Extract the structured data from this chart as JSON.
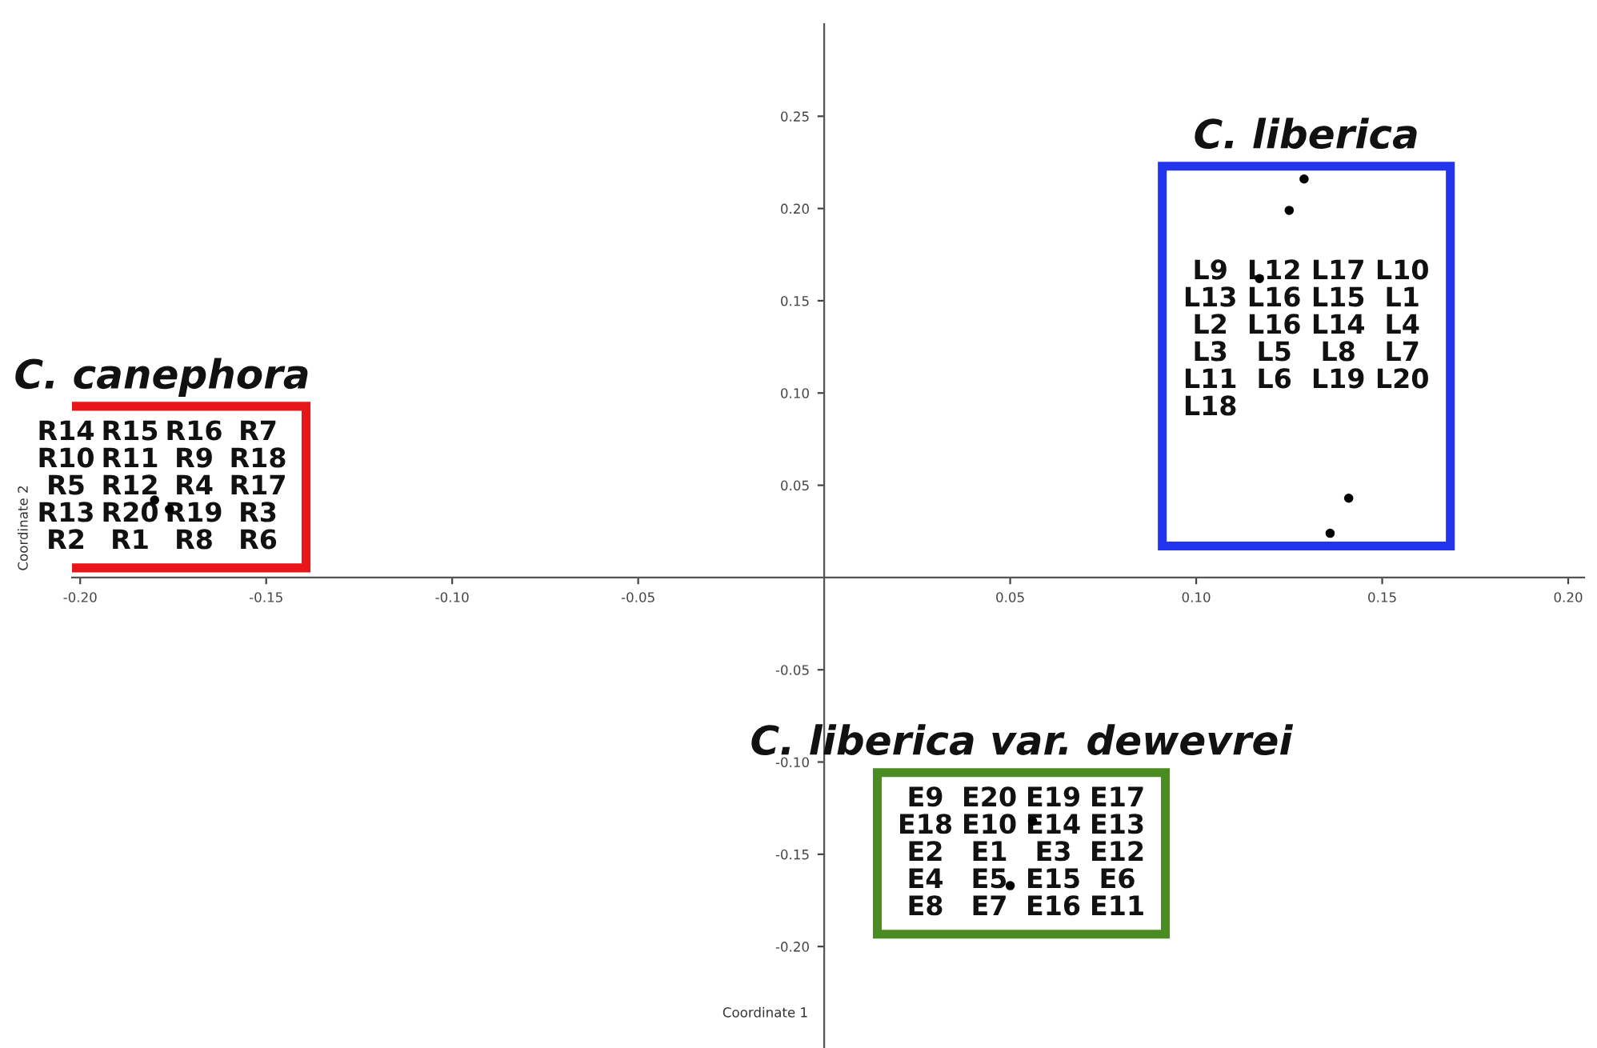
{
  "chart_data": {
    "type": "scatter",
    "xlabel": "Coordinate 1",
    "ylabel": "Coordinate 2",
    "xlim": [
      -0.2022,
      0.2043
    ],
    "ylim": [
      -0.255,
      0.3
    ],
    "xticks": [
      {
        "value": -0.2,
        "label": "-0.20"
      },
      {
        "value": -0.15,
        "label": "-0.15"
      },
      {
        "value": -0.1,
        "label": "-0.10"
      },
      {
        "value": -0.05,
        "label": "-0.05"
      },
      {
        "value": 0.05,
        "label": "0.05"
      },
      {
        "value": 0.1,
        "label": "0.10"
      },
      {
        "value": 0.15,
        "label": "0.15"
      },
      {
        "value": 0.2,
        "label": "0.20"
      }
    ],
    "yticks": [
      {
        "value": -0.2,
        "label": "-0.20"
      },
      {
        "value": -0.15,
        "label": "-0.15"
      },
      {
        "value": -0.1,
        "label": "-0.10"
      },
      {
        "value": -0.05,
        "label": "-0.05"
      },
      {
        "value": 0.05,
        "label": "0.05"
      },
      {
        "value": 0.1,
        "label": "0.10"
      },
      {
        "value": 0.15,
        "label": "0.15"
      },
      {
        "value": 0.2,
        "label": "0.20"
      },
      {
        "value": 0.25,
        "label": "0.25"
      }
    ],
    "marker": "circle",
    "series": [
      {
        "name": "C. liberica",
        "color": "#000000",
        "x": [
          0.129,
          0.125,
          0.117,
          0.141,
          0.136
        ],
        "values": [
          0.216,
          0.199,
          0.162,
          0.043,
          0.024
        ]
      },
      {
        "name": "C. canephora",
        "color": "#000000",
        "x": [
          -0.18,
          -0.176
        ],
        "values": [
          0.042,
          0.037
        ]
      },
      {
        "name": "C. liberica var. dewevrei",
        "color": "#000000",
        "x": [
          0.056,
          0.05
        ],
        "values": [
          -0.132,
          -0.167
        ]
      }
    ],
    "annotations": [
      "L9",
      "L12",
      "L17",
      "L10",
      "L13",
      "L16",
      "L15",
      "L1",
      "L2",
      "L16",
      "L14",
      "L4",
      "L3",
      "L5",
      "L8",
      "L7",
      "L11",
      "L6",
      "L19",
      "L20",
      "L18",
      "R14",
      "R15",
      "R16",
      "R7",
      "R10",
      "R11",
      "R9",
      "R18",
      "R5",
      "R12",
      "R4",
      "R17",
      "R13",
      "R20",
      "R19",
      "R3",
      "R2",
      "R1",
      "R8",
      "R6",
      "E9",
      "E20",
      "E19",
      "E17",
      "E18",
      "E10",
      "E14",
      "E13",
      "E2",
      "E1",
      "E3",
      "E12",
      "E4",
      "E5",
      "E15",
      "E6",
      "E8",
      "E7",
      "E16",
      "E11"
    ]
  }
}
